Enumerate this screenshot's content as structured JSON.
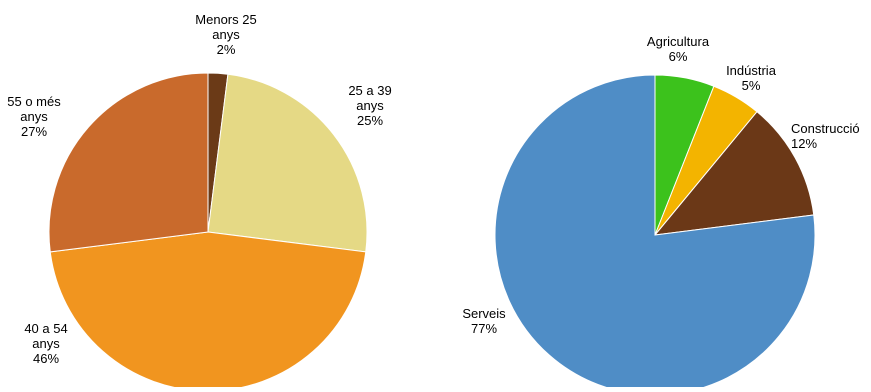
{
  "chart_data": [
    {
      "type": "pie",
      "slices": [
        {
          "label": [
            "Menors 25",
            "anys"
          ],
          "pct": "2%",
          "value": 2,
          "color": "#6b3a17"
        },
        {
          "label": [
            "25 a 39",
            "anys"
          ],
          "pct": "25%",
          "value": 25,
          "color": "#e5d985"
        },
        {
          "label": [
            "40 a 54",
            "anys"
          ],
          "pct": "46%",
          "value": 46,
          "color": "#f1951f"
        },
        {
          "label": [
            "55 o més",
            "anys"
          ],
          "pct": "27%",
          "value": 27,
          "color": "#c96a2c"
        }
      ]
    },
    {
      "type": "pie",
      "slices": [
        {
          "label": [
            "Agricultura"
          ],
          "pct": "6%",
          "value": 6,
          "color": "#3cc21c"
        },
        {
          "label": [
            "Indústria"
          ],
          "pct": "5%",
          "value": 5,
          "color": "#f3b400"
        },
        {
          "label": [
            "Construcció"
          ],
          "pct": "12%",
          "value": 12,
          "color": "#6b3817"
        },
        {
          "label": [
            "Serveis"
          ],
          "pct": "77%",
          "value": 77,
          "color": "#4f8dc6"
        }
      ]
    }
  ]
}
